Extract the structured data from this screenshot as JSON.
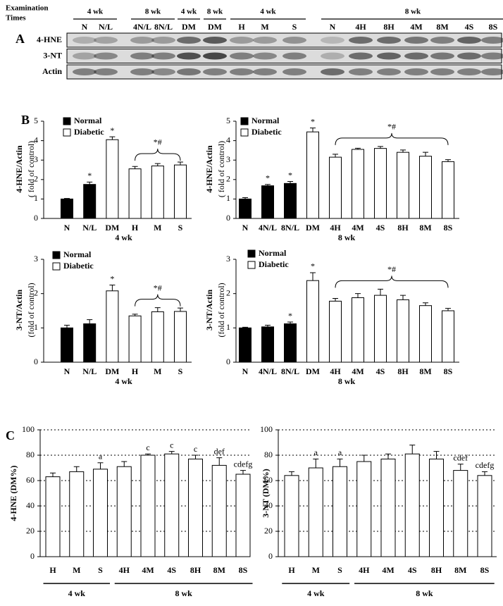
{
  "panel_labels": [
    "A",
    "B",
    "C"
  ],
  "blot": {
    "title": [
      "Examination",
      "Times"
    ],
    "groups": [
      {
        "label": "4 wk",
        "span": [
          0,
          1
        ]
      },
      {
        "label": "8 wk",
        "span": [
          2,
          3
        ]
      },
      {
        "label": "4 wk",
        "span": [
          4,
          4
        ]
      },
      {
        "label": "8 wk",
        "span": [
          5,
          5
        ]
      },
      {
        "label": "4 wk",
        "span": [
          6,
          8
        ]
      },
      {
        "label": "8 wk",
        "span": [
          9,
          15
        ]
      }
    ],
    "lanes": [
      "N",
      "N/L",
      "4N/L",
      "8N/L",
      "DM",
      "DM",
      "H",
      "M",
      "S",
      "N",
      "4H",
      "8H",
      "4M",
      "8M",
      "4S",
      "8S"
    ],
    "rows": [
      "4-HNE",
      "3-NT",
      "Actin"
    ]
  },
  "chart_data": [
    {
      "type": "bar",
      "ylabel": [
        "4-HNE/Actin",
        "( fold of control)"
      ],
      "xlabel": "4 wk",
      "categories": [
        "N",
        "N/L",
        "DM",
        "H",
        "M",
        "S"
      ],
      "series": [
        {
          "name": "Normal",
          "color": "#000000",
          "values": [
            1.0,
            1.75,
            null,
            null,
            null,
            null
          ],
          "errors": [
            0.03,
            0.12,
            null,
            null,
            null,
            null
          ],
          "labels": [
            null,
            "*",
            null,
            null,
            null,
            null
          ]
        },
        {
          "name": "Diabetic",
          "color": "#ffffff",
          "values": [
            null,
            null,
            4.05,
            2.55,
            2.7,
            2.75
          ],
          "errors": [
            null,
            null,
            0.15,
            0.12,
            0.12,
            0.15
          ],
          "labels": [
            null,
            null,
            "*",
            null,
            null,
            null
          ]
        }
      ],
      "bracket": {
        "label": "*#",
        "span": [
          3,
          5
        ]
      },
      "ylim": [
        0,
        5
      ],
      "yticks": [
        0,
        1,
        2,
        3,
        4,
        5
      ],
      "grid": false
    },
    {
      "type": "bar",
      "ylabel": [
        "4-HNE/Actin",
        "( fold of control)"
      ],
      "xlabel": "8 wk",
      "categories": [
        "N",
        "4N/L",
        "8N/L",
        "DM",
        "4H",
        "4M",
        "4S",
        "8H",
        "8M",
        "8S"
      ],
      "series": [
        {
          "name": "Normal",
          "color": "#000000",
          "values": [
            1.0,
            1.68,
            1.8,
            null,
            null,
            null,
            null,
            null,
            null,
            null
          ],
          "errors": [
            0.07,
            0.07,
            0.1,
            null,
            null,
            null,
            null,
            null,
            null,
            null
          ],
          "labels": [
            null,
            "*",
            "*",
            null,
            null,
            null,
            null,
            null,
            null,
            null
          ]
        },
        {
          "name": "Diabetic",
          "color": "#ffffff",
          "values": [
            null,
            null,
            null,
            4.45,
            3.15,
            3.55,
            3.6,
            3.4,
            3.2,
            2.92
          ],
          "errors": [
            null,
            null,
            null,
            0.2,
            0.15,
            0.06,
            0.1,
            0.12,
            0.2,
            0.1
          ],
          "labels": [
            null,
            null,
            null,
            "*",
            null,
            null,
            null,
            null,
            null,
            null
          ]
        }
      ],
      "bracket": {
        "label": "*#",
        "span": [
          4,
          9
        ]
      },
      "ylim": [
        0,
        5
      ],
      "yticks": [
        0,
        1,
        2,
        3,
        4,
        5
      ],
      "grid": false
    },
    {
      "type": "bar",
      "ylabel": [
        "3-NT/Actin",
        "(fold of control)"
      ],
      "xlabel": "4 wk",
      "categories": [
        "N",
        "N/L",
        "DM",
        "H",
        "M",
        "S"
      ],
      "series": [
        {
          "name": "Normal",
          "color": "#000000",
          "values": [
            1.0,
            1.12,
            null,
            null,
            null,
            null
          ],
          "errors": [
            0.08,
            0.12,
            null,
            null,
            null,
            null
          ],
          "labels": [
            null,
            null,
            null,
            null,
            null,
            null
          ]
        },
        {
          "name": "Diabetic",
          "color": "#ffffff",
          "values": [
            null,
            null,
            2.08,
            1.35,
            1.47,
            1.48
          ],
          "errors": [
            null,
            null,
            0.17,
            0.05,
            0.12,
            0.1
          ],
          "labels": [
            null,
            null,
            "*",
            null,
            null,
            null
          ]
        }
      ],
      "bracket": {
        "label": "*#",
        "span": [
          3,
          5
        ]
      },
      "ylim": [
        0,
        3
      ],
      "yticks": [
        0,
        1,
        2,
        3
      ],
      "grid": false
    },
    {
      "type": "bar",
      "ylabel": [
        "3-NT/Actin",
        "(fold of control)"
      ],
      "xlabel": "8 wk",
      "categories": [
        "N",
        "4N/L",
        "8N/L",
        "DM",
        "4H",
        "4M",
        "4S",
        "8H",
        "8M",
        "8S"
      ],
      "series": [
        {
          "name": "Normal",
          "color": "#000000",
          "values": [
            1.0,
            1.03,
            1.12,
            null,
            null,
            null,
            null,
            null,
            null,
            null
          ],
          "errors": [
            0.02,
            0.05,
            0.05,
            null,
            null,
            null,
            null,
            null,
            null,
            null
          ],
          "labels": [
            null,
            null,
            "*",
            null,
            null,
            null,
            null,
            null,
            null,
            null
          ]
        },
        {
          "name": "Diabetic",
          "color": "#ffffff",
          "values": [
            null,
            null,
            null,
            2.38,
            1.78,
            1.88,
            1.95,
            1.82,
            1.65,
            1.5
          ],
          "errors": [
            null,
            null,
            null,
            0.23,
            0.08,
            0.12,
            0.18,
            0.13,
            0.08,
            0.07
          ],
          "labels": [
            null,
            null,
            null,
            "*",
            null,
            null,
            null,
            null,
            null,
            null
          ]
        }
      ],
      "bracket": {
        "label": "*#",
        "span": [
          4,
          9
        ]
      },
      "ylim": [
        0,
        3
      ],
      "yticks": [
        0,
        1,
        2,
        3
      ],
      "grid": false
    },
    {
      "type": "bar",
      "ylabel": "4-HNE (DM%)",
      "categories": [
        "H",
        "M",
        "S",
        "4H",
        "4M",
        "4S",
        "8H",
        "8M",
        "8S"
      ],
      "groups": [
        {
          "label": "4 wk",
          "span": [
            0,
            2
          ]
        },
        {
          "label": "8 wk",
          "span": [
            3,
            8
          ]
        }
      ],
      "color": "#ffffff",
      "values": [
        63,
        67,
        69,
        71,
        80,
        81,
        77,
        72,
        65
      ],
      "errors": [
        3,
        4,
        5,
        4,
        1,
        2,
        3,
        6,
        3
      ],
      "labels": [
        null,
        null,
        "a",
        null,
        "c",
        "c",
        "c",
        "def",
        "cdefg"
      ],
      "ylim": [
        0,
        100
      ],
      "yticks": [
        0,
        20,
        40,
        60,
        80,
        100
      ],
      "grid": true
    },
    {
      "type": "bar",
      "ylabel": "3-NT (DM%)",
      "categories": [
        "H",
        "M",
        "S",
        "4H",
        "4M",
        "4S",
        "8H",
        "8M",
        "8S"
      ],
      "groups": [
        {
          "label": "4 wk",
          "span": [
            0,
            2
          ]
        },
        {
          "label": "8 wk",
          "span": [
            3,
            8
          ]
        }
      ],
      "color": "#ffffff",
      "values": [
        64,
        70,
        71,
        75,
        77,
        81,
        77,
        68,
        64
      ],
      "errors": [
        3,
        7,
        6,
        5,
        4,
        7,
        6,
        5,
        3
      ],
      "labels": [
        null,
        "a",
        "a",
        null,
        null,
        null,
        null,
        "cdef",
        "cdefg"
      ],
      "ylim": [
        0,
        100
      ],
      "yticks": [
        0,
        20,
        40,
        60,
        80,
        100
      ],
      "grid": true
    }
  ]
}
